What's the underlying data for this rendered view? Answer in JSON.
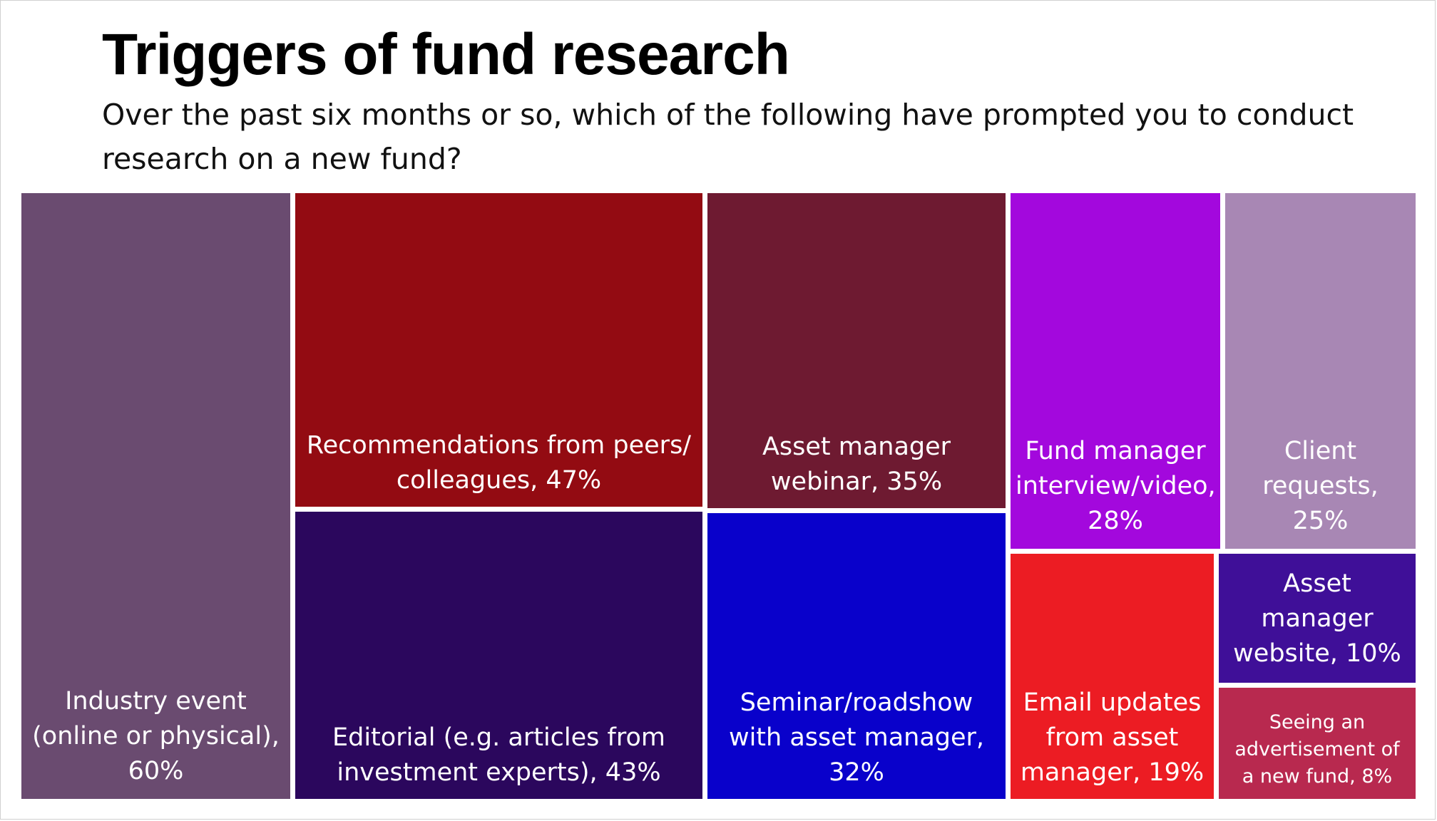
{
  "chart_data": {
    "type": "treemap",
    "title": "Triggers of fund research",
    "subtitle": "Over the past six months or so, which of the following have prompted you to conduct research on a new fund?",
    "unit": "%",
    "items": [
      {
        "label": "Industry event (online or physical), 60%",
        "name": "Industry event (online or physical)",
        "value": 60,
        "color": "#6a4b70"
      },
      {
        "label": "Recommendations from peers/ colleagues, 47%",
        "name": "Recommendations from peers/ colleagues",
        "value": 47,
        "color": "#930b12"
      },
      {
        "label": "Editorial (e.g. articles from investment experts), 43%",
        "name": "Editorial (e.g. articles from investment experts)",
        "value": 43,
        "color": "#2b075d"
      },
      {
        "label": "Asset manager webinar, 35%",
        "name": "Asset manager webinar",
        "value": 35,
        "color": "#6e1a31"
      },
      {
        "label": "Seminar/roadshow with asset manager, 32%",
        "name": "Seminar/roadshow with asset manager",
        "value": 32,
        "color": "#0901cb"
      },
      {
        "label": "Fund manager interview/video, 28%",
        "name": "Fund manager interview/video",
        "value": 28,
        "color": "#a308dd"
      },
      {
        "label": "Client requests, 25%",
        "name": "Client requests",
        "value": 25,
        "color": "#a887b4"
      },
      {
        "label": "Email updates from asset manager, 19%",
        "name": "Email updates from asset manager",
        "value": 19,
        "color": "#ec1c23"
      },
      {
        "label": "Asset manager website, 10%",
        "name": "Asset manager website",
        "value": 10,
        "color": "#3f0f98"
      },
      {
        "label": "Seeing an advertisement of a new fund, 8%",
        "name": "Seeing an advertisement of a new fund",
        "value": 8,
        "color": "#b8294f"
      }
    ]
  }
}
